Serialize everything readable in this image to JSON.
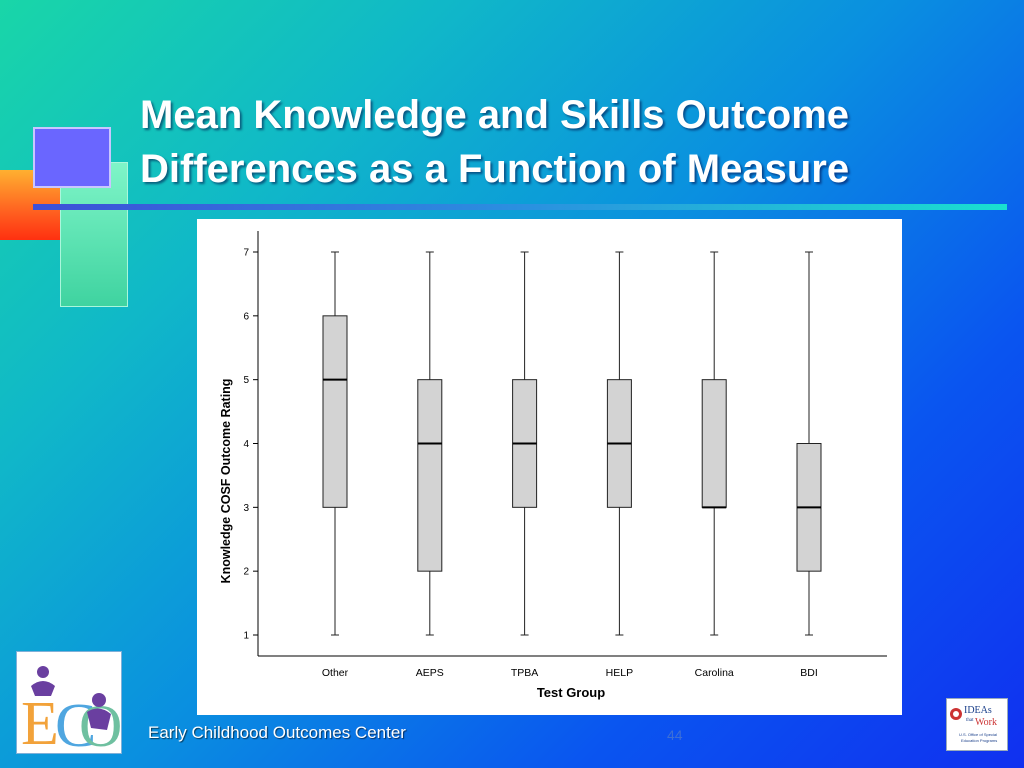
{
  "slide": {
    "title_lines": [
      "Mean Knowledge and Skills Outcome",
      "Differences as a Function of Measure"
    ],
    "footer_text": "Early Childhood Outcomes Center",
    "page_number": "44"
  },
  "logos": {
    "left": "ECO logo",
    "right_lines": [
      "IDEAs",
      "that",
      "Work",
      "U.S. Office of Special",
      "Education Programs"
    ]
  },
  "colors": {
    "box_fill": "#d3d3d3",
    "box_stroke": "#222222",
    "title_text": "#ffffff"
  },
  "chart_data": {
    "type": "boxplot",
    "xlabel": "Test Group",
    "ylabel": "Knowledge COSF Outcome Rating",
    "ylim": [
      1,
      7
    ],
    "yticks": [
      1,
      2,
      3,
      4,
      5,
      6,
      7
    ],
    "categories": [
      "Other",
      "AEPS",
      "TPBA",
      "HELP",
      "Carolina",
      "BDI"
    ],
    "boxes": [
      {
        "category": "Other",
        "min": 1,
        "q1": 3,
        "median": 5,
        "q3": 6,
        "max": 7
      },
      {
        "category": "AEPS",
        "min": 1,
        "q1": 2,
        "median": 4,
        "q3": 5,
        "max": 7
      },
      {
        "category": "TPBA",
        "min": 1,
        "q1": 3,
        "median": 4,
        "q3": 5,
        "max": 7
      },
      {
        "category": "HELP",
        "min": 1,
        "q1": 3,
        "median": 4,
        "q3": 5,
        "max": 7
      },
      {
        "category": "Carolina",
        "min": 1,
        "q1": 3,
        "median": 3,
        "q3": 5,
        "max": 7
      },
      {
        "category": "BDI",
        "min": 1,
        "q1": 2,
        "median": 3,
        "q3": 4,
        "max": 7
      }
    ]
  }
}
